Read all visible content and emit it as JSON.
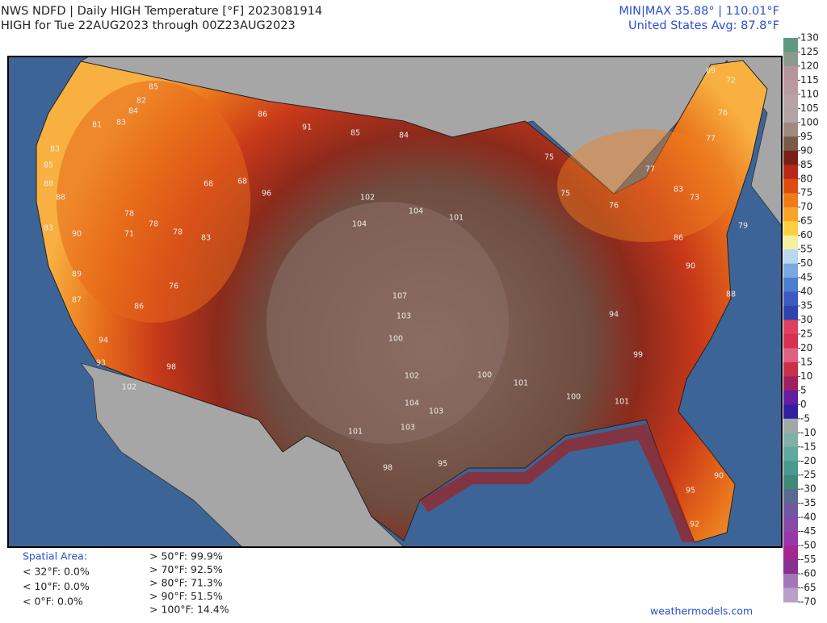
{
  "header": {
    "line1": "NWS NDFD | Daily HIGH Temperature [°F]  2023081914",
    "line2": "HIGH for Tue 22AUG2023 through 00Z23AUG2023",
    "minmax": "MIN|MAX 35.88°  |  110.01°F",
    "average": "United States Avg: 87.8°F"
  },
  "colorbar": {
    "ticks": [
      130,
      125,
      120,
      115,
      110,
      105,
      100,
      95,
      90,
      85,
      80,
      75,
      70,
      65,
      60,
      55,
      50,
      45,
      40,
      35,
      30,
      25,
      20,
      15,
      10,
      5,
      0,
      -5,
      -10,
      -15,
      -20,
      -25,
      -30,
      -35,
      -40,
      -45,
      -50,
      -55,
      -60,
      -65,
      -70
    ],
    "colors": [
      "#5f9a80",
      "#8a9a8c",
      "#b8949a",
      "#b89aa0",
      "#b8a4a8",
      "#b2a4a4",
      "#a08a80",
      "#7a5a48",
      "#7a2018",
      "#b82818",
      "#e04a10",
      "#f07a18",
      "#f8a428",
      "#fcd040",
      "#f4f0a0",
      "#b8d8f0",
      "#7aa8e0",
      "#4f7ed0",
      "#3a5cc0",
      "#2c44ac",
      "#e04060",
      "#d83050",
      "#e06080",
      "#c83048",
      "#a02060",
      "#6020a0",
      "#3020a0",
      "#a0a8a8",
      "#80b0a8",
      "#60a8a0",
      "#4a9890",
      "#408878",
      "#5a6a90",
      "#7058a0",
      "#8848a8",
      "#9838a8",
      "#a02890",
      "#883090",
      "#a078b8",
      "#b8a0c8"
    ]
  },
  "map_labels": [
    85,
    82,
    84,
    83,
    81,
    83,
    85,
    88,
    88,
    83,
    90,
    89,
    87,
    94,
    93,
    102,
    98,
    78,
    71,
    78,
    78,
    83,
    76,
    86,
    68,
    68,
    96,
    86,
    91,
    85,
    84,
    102,
    104,
    104,
    101,
    107,
    103,
    100,
    102,
    104,
    103,
    103,
    101,
    98,
    95,
    100,
    101,
    100,
    101,
    99,
    94,
    75,
    75,
    76,
    77,
    83,
    73,
    77,
    69,
    72,
    76,
    86,
    90,
    90,
    92,
    95,
    79,
    88
  ],
  "spatial_area": {
    "title": "Spatial Area:",
    "items": [
      "< 32°F: 0.0%",
      "< 10°F: 0.0%",
      "< 0°F: 0.0%"
    ]
  },
  "thresholds": [
    "> 50°F: 99.9%",
    "> 70°F: 92.5%",
    "> 80°F: 71.3%",
    "> 90°F: 51.5%",
    "> 100°F: 14.4%"
  ],
  "credit": "weathermodels.com"
}
